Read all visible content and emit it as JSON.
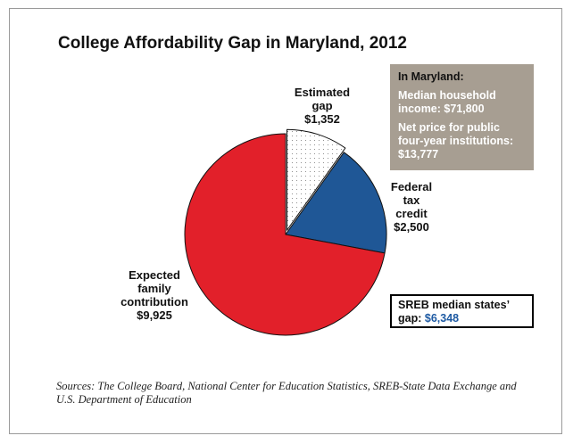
{
  "chart_data": {
    "type": "pie",
    "title": "College Affordability Gap in Maryland, 2012",
    "slices": [
      {
        "label_lines": [
          "Estimated",
          "gap",
          "$1,352"
        ],
        "value": 1352,
        "color": "#ffffff",
        "pattern": "dotted",
        "exploded": true
      },
      {
        "label_lines": [
          "Federal",
          "tax",
          "credit",
          "$2,500"
        ],
        "value": 2500,
        "color": "#1f5796",
        "pattern": "solid",
        "exploded": false
      },
      {
        "label_lines": [
          "Expected",
          "family",
          "contribution",
          "$9,925"
        ],
        "value": 9925,
        "color": "#e2202a",
        "pattern": "solid",
        "exploded": false
      }
    ],
    "start_direction": "top",
    "direction": "clockwise",
    "total": 13777
  },
  "info_box": {
    "title": "In Maryland:",
    "income": "Median household income: $71,800",
    "net_price": "Net price for public four-year institutions: $13,777"
  },
  "sreb_box": {
    "label": "SREB median states’ gap:",
    "value": "$6,348"
  },
  "sources": "Sources: The College Board, National Center for Education Statistics, SREB-State Data Exchange and U.S. Department of Education"
}
